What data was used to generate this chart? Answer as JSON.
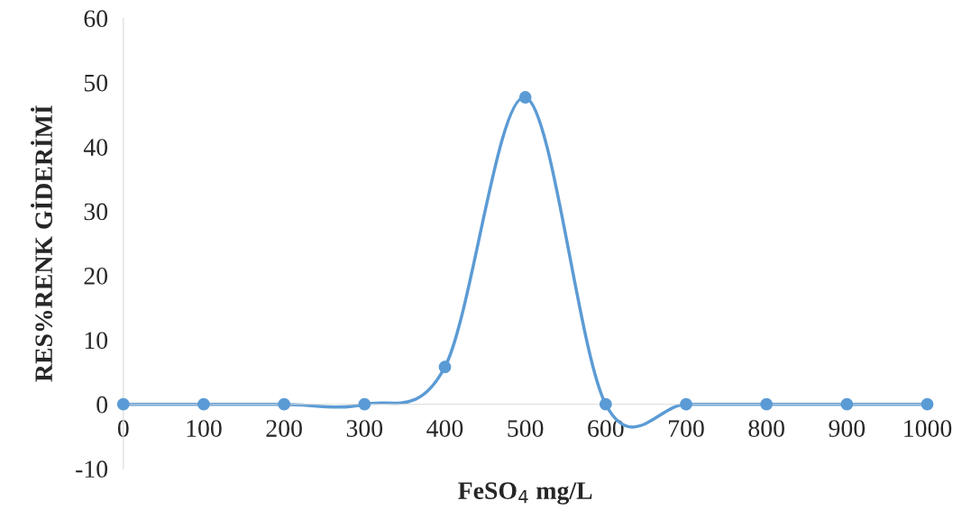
{
  "chart_data": {
    "type": "line",
    "xlabel": "FeSO$_{4}$ mg/L",
    "ylabel": "RES%RENK GİDERİMİ",
    "categories": [
      "0",
      "100",
      "200",
      "300",
      "400",
      "500",
      "600",
      "700",
      "800",
      "900",
      "1000"
    ],
    "series": [
      {
        "color": "#5b9bd5",
        "values": [
          0,
          0,
          0,
          0,
          5.8,
          47.7,
          0,
          0,
          0,
          0,
          0
        ]
      }
    ],
    "ylim": [
      -10,
      60
    ],
    "yticks": [
      -10,
      0,
      10,
      20,
      30,
      40,
      50,
      60
    ],
    "grid": false,
    "legend": false,
    "marker": "circle",
    "line_style": "solid"
  }
}
